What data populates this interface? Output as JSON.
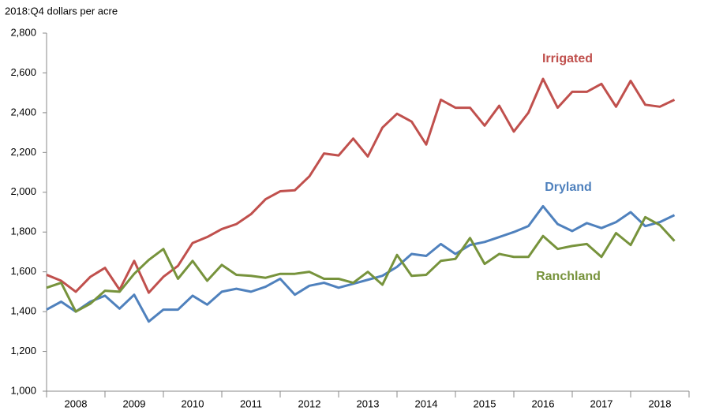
{
  "chart_data": {
    "type": "line",
    "title": "2018:Q4 dollars per acre",
    "categories": [
      "2008",
      null,
      null,
      null,
      "2009",
      null,
      null,
      null,
      "2010",
      null,
      null,
      null,
      "2011",
      null,
      null,
      null,
      "2012",
      null,
      null,
      null,
      "2013",
      null,
      null,
      null,
      "2014",
      null,
      null,
      null,
      "2015",
      null,
      null,
      null,
      "2016",
      null,
      null,
      null,
      "2017",
      null,
      null,
      null,
      "2018",
      null,
      null,
      null
    ],
    "ylim": [
      1000,
      2800
    ],
    "yticks": [
      {
        "value": 1000,
        "label": "1,000"
      },
      {
        "value": 1200,
        "label": "1,200"
      },
      {
        "value": 1400,
        "label": "1,400"
      },
      {
        "value": 1600,
        "label": "1,600"
      },
      {
        "value": 1800,
        "label": "1,800"
      },
      {
        "value": 2000,
        "label": "2,000"
      },
      {
        "value": 2200,
        "label": "2,200"
      },
      {
        "value": 2400,
        "label": "2,400"
      },
      {
        "value": 2600,
        "label": "2,600"
      },
      {
        "value": 2800,
        "label": "2,800"
      }
    ],
    "series": [
      {
        "name": "Irrigated",
        "color": "#c0504d",
        "values": [
          1585,
          1555,
          1500,
          1575,
          1620,
          1510,
          1655,
          1495,
          1575,
          1630,
          1745,
          1775,
          1815,
          1840,
          1890,
          1965,
          2005,
          2010,
          2080,
          2195,
          2185,
          2270,
          2180,
          2325,
          2395,
          2355,
          2240,
          2465,
          2425,
          2425,
          2335,
          2435,
          2305,
          2400,
          2570,
          2425,
          2505,
          2505,
          2545,
          2430,
          2560,
          2440,
          2430,
          2465
        ]
      },
      {
        "name": "Dryland",
        "color": "#4f81bd",
        "values": [
          1410,
          1450,
          1400,
          1450,
          1480,
          1415,
          1485,
          1350,
          1410,
          1410,
          1480,
          1435,
          1500,
          1515,
          1500,
          1525,
          1565,
          1485,
          1530,
          1545,
          1520,
          1540,
          1560,
          1580,
          1625,
          1690,
          1680,
          1740,
          1690,
          1735,
          1750,
          1775,
          1800,
          1830,
          1930,
          1840,
          1805,
          1845,
          1820,
          1850,
          1900,
          1830,
          1850,
          1885
        ]
      },
      {
        "name": "Ranchland",
        "color": "#77933c",
        "values": [
          1520,
          1545,
          1400,
          1440,
          1505,
          1500,
          1590,
          1660,
          1715,
          1565,
          1655,
          1555,
          1635,
          1585,
          1580,
          1570,
          1590,
          1590,
          1600,
          1565,
          1565,
          1545,
          1600,
          1535,
          1685,
          1580,
          1585,
          1655,
          1665,
          1770,
          1640,
          1690,
          1675,
          1675,
          1780,
          1715,
          1730,
          1740,
          1675,
          1795,
          1735,
          1875,
          1835,
          1755
        ]
      }
    ]
  }
}
